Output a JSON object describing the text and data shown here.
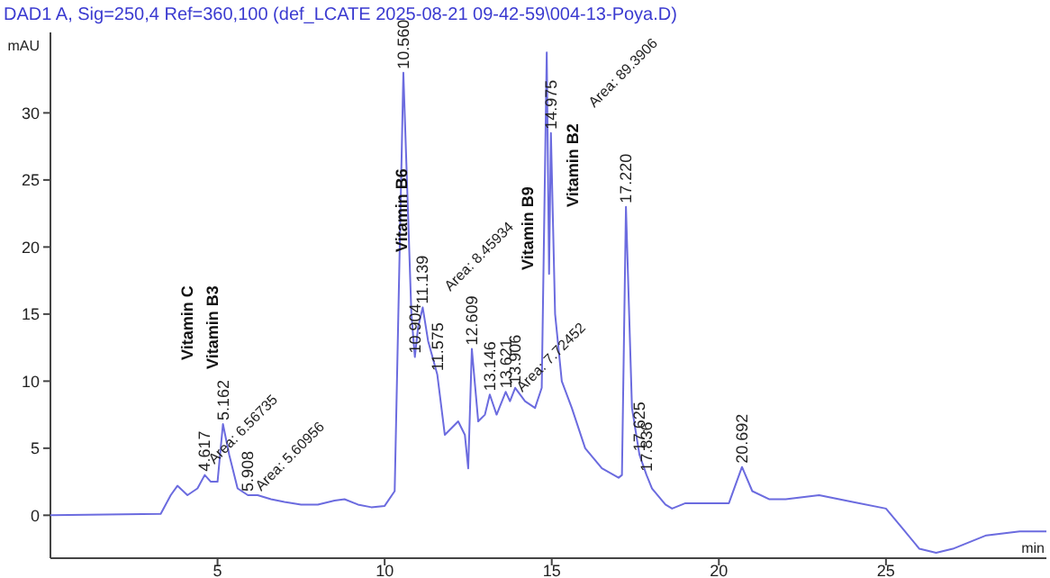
{
  "chart_data": {
    "type": "line",
    "title": "DAD1 A, Sig=250,4 Ref=360,100 (def_LCATE 2025-08-21 09-42-59\\004-13-Poya.D)",
    "xlabel": "min",
    "ylabel": "mAU",
    "xlim": [
      0,
      29.8
    ],
    "ylim": [
      -3.2,
      36
    ],
    "xticks": [
      5,
      10,
      15,
      20,
      25
    ],
    "yticks": [
      0,
      5,
      10,
      15,
      20,
      25,
      30
    ],
    "grid": false,
    "marker": "none",
    "line_style": "solid",
    "series": [
      {
        "color": "#6b6bdf",
        "x": [
          0,
          3.3,
          3.6,
          3.8,
          4.1,
          4.4,
          4.617,
          4.8,
          5.0,
          5.162,
          5.35,
          5.6,
          5.908,
          6.2,
          6.6,
          7.0,
          7.5,
          8.0,
          8.5,
          8.8,
          9.2,
          9.6,
          10.0,
          10.3,
          10.56,
          10.8,
          10.904,
          11.0,
          11.139,
          11.3,
          11.575,
          11.8,
          12.0,
          12.2,
          12.4,
          12.5,
          12.609,
          12.8,
          13.0,
          13.146,
          13.35,
          13.621,
          13.75,
          13.906,
          14.2,
          14.5,
          14.7,
          14.85,
          14.92,
          14.975,
          15.1,
          15.3,
          15.6,
          16.0,
          16.5,
          17.0,
          17.1,
          17.22,
          17.4,
          17.625,
          17.836,
          18.0,
          18.4,
          18.6,
          19.0,
          20.3,
          20.692,
          21.0,
          21.5,
          22.0,
          23.0,
          24.0,
          25.0,
          25.5,
          26.0,
          26.5,
          27.0,
          28.0,
          29.0,
          29.8
        ],
        "values": [
          0,
          0.1,
          1.5,
          2.2,
          1.5,
          2.0,
          3.0,
          2.5,
          2.5,
          6.8,
          4.5,
          2.0,
          1.5,
          1.5,
          1.2,
          1.0,
          0.8,
          0.8,
          1.1,
          1.2,
          0.8,
          0.6,
          0.7,
          1.8,
          33.0,
          15,
          11.8,
          14,
          15.5,
          13,
          10.5,
          6.0,
          6.5,
          7.0,
          6.0,
          3.5,
          12.4,
          7.0,
          7.5,
          9.0,
          7.5,
          9.2,
          8.5,
          9.5,
          8.5,
          8.0,
          9.5,
          34.5,
          18,
          28.5,
          15,
          10,
          8,
          5,
          3.5,
          2.8,
          3.0,
          23.0,
          8,
          4.5,
          3.0,
          2.0,
          0.8,
          0.5,
          0.9,
          0.9,
          3.6,
          1.8,
          1.2,
          1.2,
          1.5,
          1.0,
          0.5,
          -1.0,
          -2.5,
          -2.8,
          -2.5,
          -1.5,
          -1.2,
          -1.2
        ]
      }
    ],
    "annotations": [
      {
        "text": "4.617",
        "x": 4.617,
        "y": 3.0
      },
      {
        "text": "5.162",
        "x": 5.162,
        "y": 6.8
      },
      {
        "text": "5.908",
        "x": 5.908,
        "y": 1.5
      },
      {
        "text": "10.560",
        "x": 10.56,
        "y": 33.0
      },
      {
        "text": "10.904",
        "x": 10.904,
        "y": 11.8
      },
      {
        "text": "11.139",
        "x": 11.139,
        "y": 15.5
      },
      {
        "text": "11.575",
        "x": 11.575,
        "y": 10.5
      },
      {
        "text": "12.609",
        "x": 12.609,
        "y": 12.4
      },
      {
        "text": "13.146",
        "x": 13.146,
        "y": 9.0
      },
      {
        "text": "13.621",
        "x": 13.621,
        "y": 9.2
      },
      {
        "text": "13.906",
        "x": 13.906,
        "y": 9.5
      },
      {
        "text": "14.975",
        "x": 14.975,
        "y": 28.5
      },
      {
        "text": "17.220",
        "x": 17.22,
        "y": 23.0
      },
      {
        "text": "17.625",
        "x": 17.625,
        "y": 4.5
      },
      {
        "text": "17.836",
        "x": 17.836,
        "y": 3.0
      },
      {
        "text": "20.692",
        "x": 20.692,
        "y": 3.6
      },
      "Area: 6.56735",
      "Area: 5.60956",
      "Area: 8.45934",
      "Area: 7.72452",
      "Area: 89.3906",
      "Vitamin C",
      "Vitamin B3",
      "Vitamin B6",
      "Vitamin B9",
      "Vitamin B2"
    ]
  }
}
